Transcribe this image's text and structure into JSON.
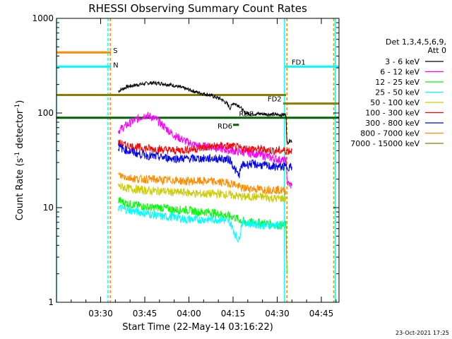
{
  "chart_data": {
    "type": "line",
    "title": "RHESSI Observing Summary Count Rates",
    "xlabel": "Start Time (22-May-14 03:16:22)",
    "ylabel_main": "Count Rate (s",
    "ylabel_sup1": "-1",
    "ylabel_mid": " detector",
    "ylabel_sup2": "-1",
    "ylabel_end": ")",
    "footer": "23-Oct-2021 17:25",
    "x_range_minutes": [
      0,
      96
    ],
    "ylim": [
      1,
      1000
    ],
    "log_y": true,
    "x_ticks": [
      {
        "label": "03:30",
        "min": 15
      },
      {
        "label": "03:45",
        "min": 30
      },
      {
        "label": "04:00",
        "min": 45
      },
      {
        "label": "04:15",
        "min": 60
      },
      {
        "label": "04:30",
        "min": 75
      },
      {
        "label": "04:45",
        "min": 90
      }
    ],
    "y_ticks": [
      {
        "label": "1",
        "v": 1
      },
      {
        "label": "10",
        "v": 10
      },
      {
        "label": "100",
        "v": 100
      },
      {
        "label": "1000",
        "v": 1000
      }
    ],
    "legend_header_1": "Det 1,3,4,5,6,9,",
    "legend_header_2": "Att 0",
    "series": [
      {
        "name": "3 - 6 keV",
        "color": "#000000",
        "points": [
          [
            21,
            170
          ],
          [
            24,
            190
          ],
          [
            28,
            200
          ],
          [
            32,
            208
          ],
          [
            36,
            205
          ],
          [
            40,
            195
          ],
          [
            44,
            180
          ],
          [
            48,
            165
          ],
          [
            52,
            155
          ],
          [
            56,
            140
          ],
          [
            58,
            125
          ],
          [
            59,
            112
          ],
          [
            60,
            128
          ],
          [
            62,
            120
          ],
          [
            64,
            100
          ],
          [
            66,
            98
          ],
          [
            68,
            98
          ],
          [
            70,
            98
          ],
          [
            72,
            97
          ],
          [
            74,
            96
          ],
          [
            77,
            96
          ],
          [
            78,
            96
          ],
          [
            78.3,
            48
          ],
          [
            79.5,
            52
          ],
          [
            80,
            50
          ]
        ]
      },
      {
        "name": "6 - 12 keV",
        "color": "#ff00ff",
        "points": [
          [
            21,
            65
          ],
          [
            24,
            75
          ],
          [
            27,
            85
          ],
          [
            30,
            95
          ],
          [
            32,
            92
          ],
          [
            34,
            85
          ],
          [
            37,
            70
          ],
          [
            40,
            58
          ],
          [
            44,
            50
          ],
          [
            48,
            45
          ],
          [
            52,
            44
          ],
          [
            56,
            42
          ],
          [
            59,
            40
          ],
          [
            62,
            39
          ],
          [
            65,
            38
          ],
          [
            68,
            37
          ],
          [
            71,
            35
          ],
          [
            74,
            33
          ],
          [
            76,
            32
          ],
          [
            78,
            31
          ],
          [
            78.5,
            18
          ],
          [
            80,
            17
          ]
        ]
      },
      {
        "name": "12 - 25 keV",
        "color": "#00ff00",
        "points": [
          [
            21,
            12
          ],
          [
            24,
            11
          ],
          [
            28,
            10.5
          ],
          [
            32,
            10
          ],
          [
            36,
            10
          ],
          [
            40,
            9.5
          ],
          [
            44,
            9.5
          ],
          [
            48,
            9
          ],
          [
            52,
            9
          ],
          [
            56,
            8.5
          ],
          [
            60,
            8
          ],
          [
            64,
            7
          ],
          [
            68,
            7
          ],
          [
            72,
            6.8
          ],
          [
            76,
            6.5
          ],
          [
            78,
            6.5
          ],
          [
            78.3,
            2
          ]
        ]
      },
      {
        "name": "25 - 50 keV",
        "color": "#00ffff",
        "points": [
          [
            21,
            10
          ],
          [
            24,
            9.5
          ],
          [
            28,
            9
          ],
          [
            32,
            8.5
          ],
          [
            36,
            8
          ],
          [
            40,
            8
          ],
          [
            44,
            7.5
          ],
          [
            48,
            7.5
          ],
          [
            52,
            7.5
          ],
          [
            56,
            7.5
          ],
          [
            59,
            7
          ],
          [
            61,
            5
          ],
          [
            62,
            4.5
          ],
          [
            63,
            7
          ],
          [
            66,
            6.8
          ],
          [
            70,
            6.5
          ],
          [
            74,
            6.5
          ],
          [
            78,
            6.5
          ]
        ]
      },
      {
        "name": "50 - 100 keV",
        "color": "#cccc00",
        "points": [
          [
            21,
            17
          ],
          [
            24,
            16
          ],
          [
            28,
            15.5
          ],
          [
            32,
            15
          ],
          [
            36,
            15
          ],
          [
            40,
            14.5
          ],
          [
            44,
            14.5
          ],
          [
            48,
            14
          ],
          [
            52,
            14
          ],
          [
            56,
            14
          ],
          [
            60,
            13.5
          ],
          [
            63,
            13
          ],
          [
            66,
            13
          ],
          [
            70,
            13
          ],
          [
            74,
            12.5
          ],
          [
            78,
            12.5
          ]
        ]
      },
      {
        "name": "100 - 300 keV",
        "color": "#ff0000",
        "points": [
          [
            21,
            48
          ],
          [
            24,
            45
          ],
          [
            28,
            43
          ],
          [
            32,
            42
          ],
          [
            36,
            41
          ],
          [
            40,
            40
          ],
          [
            44,
            41
          ],
          [
            48,
            42
          ],
          [
            52,
            44
          ],
          [
            56,
            45
          ],
          [
            60,
            44
          ],
          [
            63,
            42
          ],
          [
            66,
            42
          ],
          [
            70,
            41
          ],
          [
            74,
            40
          ],
          [
            78,
            40
          ],
          [
            80,
            40
          ]
        ]
      },
      {
        "name": "300 - 800 keV",
        "color": "#0000ff",
        "points": [
          [
            21,
            44
          ],
          [
            24,
            40
          ],
          [
            28,
            37
          ],
          [
            32,
            35
          ],
          [
            36,
            34
          ],
          [
            40,
            33
          ],
          [
            44,
            33
          ],
          [
            48,
            33
          ],
          [
            52,
            33
          ],
          [
            56,
            33
          ],
          [
            59,
            32
          ],
          [
            61,
            24
          ],
          [
            62,
            22
          ],
          [
            63,
            28
          ],
          [
            66,
            29
          ],
          [
            70,
            28
          ],
          [
            74,
            27
          ],
          [
            78,
            27
          ],
          [
            80,
            27
          ]
        ]
      },
      {
        "name": "800 - 7000 keV",
        "color": "#ff8c00",
        "points": [
          [
            21,
            22
          ],
          [
            24,
            21
          ],
          [
            28,
            20
          ],
          [
            32,
            20
          ],
          [
            36,
            19.5
          ],
          [
            40,
            19.5
          ],
          [
            44,
            19
          ],
          [
            48,
            19
          ],
          [
            52,
            19
          ],
          [
            56,
            18.5
          ],
          [
            60,
            18
          ],
          [
            63,
            16
          ],
          [
            66,
            16
          ],
          [
            70,
            15.5
          ],
          [
            74,
            15.5
          ],
          [
            78,
            15
          ]
        ]
      },
      {
        "name": "7000 - 15000 keV",
        "color": "#8b7d00",
        "points": []
      }
    ],
    "flags": [
      {
        "label": "S",
        "color": "#ff8c00",
        "value": 0.88,
        "x_start": 0,
        "x_end": 18.5
      },
      {
        "label": "N",
        "color": "#00ffff",
        "value": 0.83,
        "x_start": 0,
        "x_end": 18.5
      },
      {
        "label": "FD1",
        "color": "#00ffff",
        "value": 0.83,
        "x_start": 77.5,
        "x_end": 96
      },
      {
        "label": "",
        "color": "#8b7d00",
        "value": 0.73,
        "x_start": 0,
        "x_end": 78
      },
      {
        "label": "FD2",
        "color": "#8b7d00",
        "value": 0.7,
        "x_start": 77,
        "x_end": 96
      },
      {
        "label": "RDS",
        "color": "#006400",
        "value": 0.65,
        "x_start": 0,
        "x_end": 96
      },
      {
        "label": "RD6",
        "color": "#006400",
        "value": 0.625,
        "x_start": 60,
        "x_end": 62
      }
    ],
    "vlines": [
      {
        "min": 0,
        "color": "#00ffff",
        "dashed": false
      },
      {
        "min": 17.5,
        "color": "#00ffff",
        "dashed": true
      },
      {
        "min": 18.3,
        "color": "#ff8c00",
        "dashed": true
      },
      {
        "min": 77.5,
        "color": "#00ffff",
        "dashed": false
      },
      {
        "min": 78.3,
        "color": "#ff8c00",
        "dashed": true
      },
      {
        "min": 94.2,
        "color": "#ff8c00",
        "dashed": true
      },
      {
        "min": 94.7,
        "color": "#00ffff",
        "dashed": false
      }
    ]
  }
}
